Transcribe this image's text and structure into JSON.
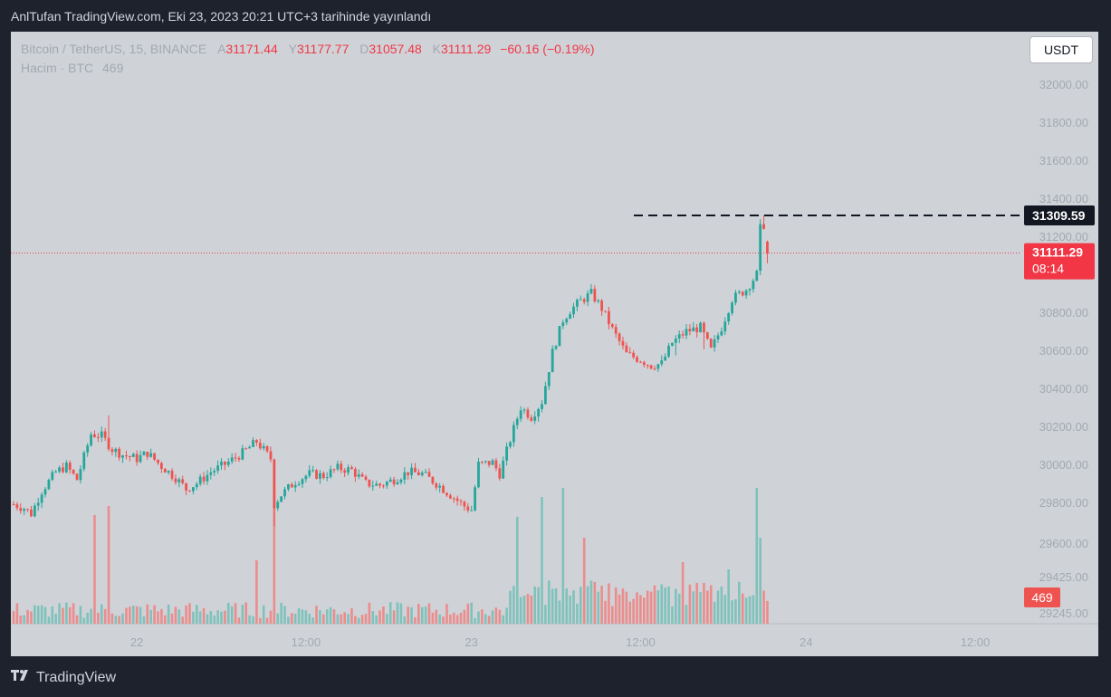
{
  "caption": "AnlTufan TradingView.com, Eki 23, 2023 20:21 UTC+3 tarihinde yayınlandı",
  "legend": {
    "symbol": "Bitcoin / TetherUS, 15, BINANCE",
    "open_label": "A",
    "open": "31171.44",
    "high_label": "Y",
    "high": "31177.77",
    "low_label": "D",
    "low": "31057.48",
    "close_label": "K",
    "close": "31111.29",
    "change": "−60.16 (−0.19%)",
    "volume_label": "Hacim · BTC",
    "volume_value": "469"
  },
  "currency": "USDT",
  "footer": {
    "brand": "TradingView",
    "logo_icon": "tradingview-logo-icon"
  },
  "colors": {
    "up": "#26a69a",
    "down": "#ef5350",
    "up_vol": "#7fc2bb",
    "down_vol": "#ec8c8c",
    "last_price": "#f23645",
    "background": "#cfd3d8"
  },
  "chart_data": {
    "type": "candlestick",
    "price_axis": {
      "ticks": [
        32000,
        31800,
        31600,
        31400,
        31200,
        30800,
        30600,
        30400,
        30200,
        30000,
        29800,
        29600,
        29425,
        29245
      ],
      "tick_labels": [
        "32000.00",
        "31800.00",
        "31600.00",
        "31400.00",
        "31200.00",
        "30800.00",
        "30600.00",
        "30400.00",
        "30200.00",
        "30000.00",
        "29800.00",
        "29600.00",
        "29425.00",
        "29245.00"
      ],
      "range": [
        29180,
        32100
      ]
    },
    "time_axis": {
      "labels": [
        "22",
        "12:00",
        "23",
        "12:00",
        "24",
        "12:00"
      ],
      "label_bar_index": [
        35,
        83,
        130,
        178,
        225,
        273
      ]
    },
    "last_price": {
      "label": "31111.29",
      "countdown": "08:14"
    },
    "marked_high": {
      "label": "31309.59",
      "value": 31309.59
    },
    "volume_badge": "469",
    "anchors": [
      [
        0,
        29790
      ],
      [
        3,
        29770
      ],
      [
        5,
        29740
      ],
      [
        8,
        29860
      ],
      [
        12,
        29960
      ],
      [
        15,
        29990
      ],
      [
        18,
        29920
      ],
      [
        22,
        30160
      ],
      [
        25,
        30150
      ],
      [
        28,
        30080
      ],
      [
        31,
        30050
      ],
      [
        35,
        30030
      ],
      [
        38,
        30060
      ],
      [
        42,
        29990
      ],
      [
        46,
        29930
      ],
      [
        49,
        29870
      ],
      [
        52,
        29900
      ],
      [
        56,
        29960
      ],
      [
        60,
        30000
      ],
      [
        65,
        30060
      ],
      [
        69,
        30120
      ],
      [
        73,
        30030
      ],
      [
        74,
        29790
      ],
      [
        76,
        29840
      ],
      [
        80,
        29910
      ],
      [
        84,
        29950
      ],
      [
        88,
        29940
      ],
      [
        92,
        29980
      ],
      [
        96,
        29970
      ],
      [
        100,
        29900
      ],
      [
        104,
        29890
      ],
      [
        108,
        29920
      ],
      [
        112,
        29960
      ],
      [
        116,
        29950
      ],
      [
        120,
        29900
      ],
      [
        124,
        29840
      ],
      [
        128,
        29780
      ],
      [
        130,
        29760
      ],
      [
        132,
        30000
      ],
      [
        136,
        30010
      ],
      [
        138,
        29950
      ],
      [
        141,
        30130
      ],
      [
        144,
        30300
      ],
      [
        147,
        30250
      ],
      [
        150,
        30330
      ],
      [
        153,
        30590
      ],
      [
        156,
        30760
      ],
      [
        158,
        30810
      ],
      [
        161,
        30860
      ],
      [
        164,
        30900
      ],
      [
        167,
        30820
      ],
      [
        170,
        30710
      ],
      [
        174,
        30580
      ],
      [
        178,
        30550
      ],
      [
        181,
        30520
      ],
      [
        184,
        30530
      ],
      [
        187,
        30640
      ],
      [
        191,
        30700
      ],
      [
        195,
        30720
      ],
      [
        198,
        30600
      ],
      [
        201,
        30720
      ],
      [
        204,
        30870
      ],
      [
        208,
        30920
      ],
      [
        211,
        31000
      ],
      [
        212,
        31240
      ],
      [
        213,
        31260
      ],
      [
        214,
        31111.29
      ]
    ],
    "close": 31111.29
  }
}
